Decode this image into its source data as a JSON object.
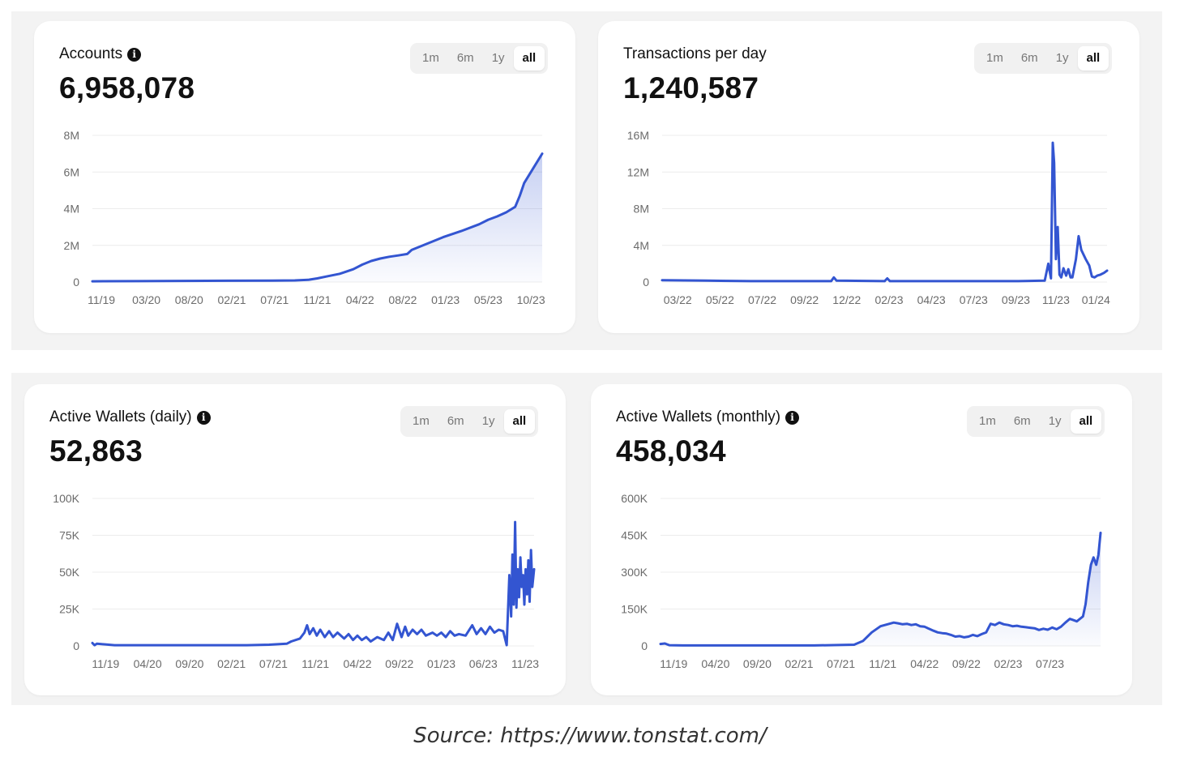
{
  "cards": [
    {
      "title": "Accounts",
      "has_info": true,
      "value": "6,958,078",
      "ranges": [
        "1m",
        "6m",
        "1y",
        "all"
      ],
      "active_range": "all"
    },
    {
      "title": "Transactions per day",
      "has_info": false,
      "value": "1,240,587",
      "ranges": [
        "1m",
        "6m",
        "1y",
        "all"
      ],
      "active_range": "all"
    },
    {
      "title": "Active Wallets (daily)",
      "has_info": true,
      "value": "52,863",
      "ranges": [
        "1m",
        "6m",
        "1y",
        "all"
      ],
      "active_range": "all"
    },
    {
      "title": "Active Wallets (monthly)",
      "has_info": true,
      "value": "458,034",
      "ranges": [
        "1m",
        "6m",
        "1y",
        "all"
      ],
      "active_range": "all"
    }
  ],
  "chart_data": [
    {
      "type": "area",
      "title": "Accounts",
      "color": "#3355d1",
      "ylim": [
        0,
        8000000
      ],
      "yticks": [
        0,
        2000000,
        4000000,
        6000000,
        8000000
      ],
      "ytick_labels": [
        "0",
        "2M",
        "4M",
        "6M",
        "8M"
      ],
      "xlim": [
        0,
        100
      ],
      "xtick_positions": [
        2,
        12,
        21.5,
        31,
        40.5,
        50,
        59.5,
        69,
        78.5,
        88,
        97.5
      ],
      "xtick_labels": [
        "11/19",
        "03/20",
        "08/20",
        "02/21",
        "07/21",
        "11/21",
        "04/22",
        "08/22",
        "01/23",
        "05/23",
        "10/23"
      ],
      "x": [
        0,
        10,
        20,
        30,
        40,
        45,
        48,
        50,
        52,
        55,
        58,
        60,
        62,
        64,
        66,
        68,
        70,
        71,
        74,
        78,
        82,
        86,
        88,
        90,
        92,
        94,
        95,
        96,
        98,
        100
      ],
      "y": [
        40000,
        50000,
        60000,
        70000,
        80000,
        90000,
        120000,
        200000,
        300000,
        450000,
        700000,
        950000,
        1150000,
        1280000,
        1380000,
        1450000,
        1530000,
        1750000,
        2050000,
        2450000,
        2780000,
        3150000,
        3400000,
        3580000,
        3800000,
        4100000,
        4700000,
        5400000,
        6200000,
        7000000
      ]
    },
    {
      "type": "line",
      "title": "Transactions per day",
      "color": "#3355d1",
      "ylim": [
        0,
        16000000
      ],
      "yticks": [
        0,
        4000000,
        8000000,
        12000000,
        16000000
      ],
      "ytick_labels": [
        "0",
        "4M",
        "8M",
        "12M",
        "16M"
      ],
      "xlim": [
        0,
        100
      ],
      "xtick_positions": [
        3.5,
        13,
        22.5,
        32,
        41.5,
        51,
        60.5,
        70,
        79.5,
        88.5,
        97.5
      ],
      "xtick_labels": [
        "03/22",
        "05/22",
        "07/22",
        "09/22",
        "12/22",
        "02/23",
        "04/23",
        "07/23",
        "09/23",
        "11/23",
        "01/24"
      ],
      "x": [
        0,
        10,
        20,
        30,
        38,
        38.6,
        39.2,
        50,
        50.6,
        51.2,
        60,
        70,
        80,
        86,
        86.8,
        87.4,
        87.8,
        88.1,
        88.5,
        88.9,
        89.3,
        89.7,
        90.2,
        90.8,
        91.3,
        91.8,
        92.2,
        93,
        93.6,
        94.2,
        95.2,
        96,
        96.6,
        97.2,
        97.8,
        98.5,
        99.3,
        100
      ],
      "y": [
        200000,
        150000,
        100000,
        100000,
        100000,
        500000,
        150000,
        100000,
        400000,
        100000,
        100000,
        100000,
        100000,
        150000,
        2000000,
        400000,
        15200000,
        13000000,
        2500000,
        6000000,
        800000,
        500000,
        1500000,
        700000,
        1400000,
        500000,
        500000,
        2500000,
        5000000,
        3500000,
        2500000,
        1800000,
        600000,
        500000,
        700000,
        800000,
        1000000,
        1250000
      ]
    },
    {
      "type": "line",
      "title": "Active Wallets (daily)",
      "color": "#3355d1",
      "ylim": [
        0,
        100000
      ],
      "yticks": [
        0,
        25000,
        50000,
        75000,
        100000
      ],
      "ytick_labels": [
        "0",
        "25K",
        "50K",
        "75K",
        "100K"
      ],
      "xlim": [
        0,
        100
      ],
      "xtick_positions": [
        3,
        12.5,
        22,
        31.5,
        41,
        50.5,
        60,
        69.5,
        79,
        88.5,
        98
      ],
      "xtick_labels": [
        "11/19",
        "04/20",
        "09/20",
        "02/21",
        "07/21",
        "11/21",
        "04/22",
        "09/22",
        "01/23",
        "06/23",
        "11/23"
      ],
      "x": [
        0,
        0.5,
        1,
        5,
        15,
        25,
        35,
        40,
        44,
        45,
        47,
        48,
        48.6,
        49.2,
        50,
        50.8,
        51.6,
        52.6,
        53.6,
        54.5,
        55.5,
        57,
        58,
        59,
        60,
        61,
        62,
        63,
        64.5,
        66,
        67,
        68,
        69,
        70,
        70.8,
        71.5,
        72.5,
        73.5,
        74.5,
        75.5,
        77,
        78,
        79,
        80,
        81,
        82,
        83,
        84.5,
        86,
        87,
        88,
        89,
        90,
        91,
        92,
        93,
        93.8,
        94.4,
        94.8,
        95.1,
        95.4,
        95.7,
        96,
        96.3,
        96.6,
        96.9,
        97.2,
        97.5,
        97.8,
        98.1,
        98.4,
        98.7,
        99,
        99.3,
        99.6,
        100
      ],
      "y": [
        2000,
        500,
        1500,
        500,
        500,
        500,
        500,
        800,
        1500,
        3000,
        5000,
        9000,
        14000,
        8000,
        12000,
        7000,
        11000,
        6000,
        10000,
        6000,
        9000,
        5000,
        8000,
        4000,
        7000,
        4000,
        6000,
        3000,
        6000,
        4000,
        9000,
        4000,
        15000,
        6000,
        13000,
        7000,
        11000,
        8000,
        11000,
        7000,
        9000,
        7000,
        9000,
        6000,
        10000,
        7000,
        8000,
        7000,
        14000,
        8000,
        12000,
        8000,
        13000,
        9000,
        11000,
        10000,
        500,
        48000,
        20000,
        62000,
        28000,
        84000,
        26000,
        52000,
        33000,
        60000,
        40000,
        48000,
        28000,
        52000,
        35000,
        58000,
        30000,
        65000,
        40000,
        52000
      ]
    },
    {
      "type": "area",
      "title": "Active Wallets (monthly)",
      "color": "#3355d1",
      "ylim": [
        0,
        600000
      ],
      "yticks": [
        0,
        150000,
        300000,
        450000,
        600000
      ],
      "ytick_labels": [
        "0",
        "150K",
        "300K",
        "450K",
        "600K"
      ],
      "xlim": [
        0,
        100
      ],
      "xtick_positions": [
        3,
        12.5,
        22,
        31.5,
        41,
        50.5,
        60,
        69.5,
        79,
        88.5
      ],
      "xtick_labels": [
        "11/19",
        "04/20",
        "09/20",
        "02/21",
        "07/21",
        "11/21",
        "04/22",
        "09/22",
        "02/23",
        "07/23"
      ],
      "x": [
        0,
        1,
        2,
        5,
        15,
        25,
        35,
        44,
        46,
        48,
        50,
        52,
        53,
        54,
        55,
        56,
        57,
        58,
        59,
        60,
        61,
        62,
        63,
        64,
        65,
        66,
        67,
        68,
        69,
        70,
        71,
        72,
        73,
        74,
        75,
        76,
        77,
        78,
        79,
        80,
        81,
        82,
        83,
        84,
        85,
        86,
        87,
        88,
        89,
        90,
        91,
        92,
        93,
        93.8,
        94.6,
        95.3,
        96,
        96.6,
        97.2,
        97.8,
        98.4,
        99,
        99.5,
        100
      ],
      "y": [
        8000,
        10000,
        3000,
        2000,
        2000,
        2000,
        2000,
        5000,
        20000,
        55000,
        80000,
        90000,
        95000,
        92000,
        88000,
        90000,
        85000,
        88000,
        80000,
        78000,
        70000,
        62000,
        55000,
        52000,
        50000,
        45000,
        38000,
        40000,
        35000,
        38000,
        45000,
        40000,
        48000,
        55000,
        90000,
        85000,
        95000,
        88000,
        85000,
        80000,
        82000,
        78000,
        76000,
        74000,
        72000,
        65000,
        70000,
        66000,
        75000,
        68000,
        78000,
        95000,
        110000,
        105000,
        100000,
        110000,
        120000,
        170000,
        260000,
        330000,
        360000,
        330000,
        370000,
        460000
      ]
    }
  ],
  "footer": {
    "source": "Source: https://www.tonstat.com/"
  }
}
